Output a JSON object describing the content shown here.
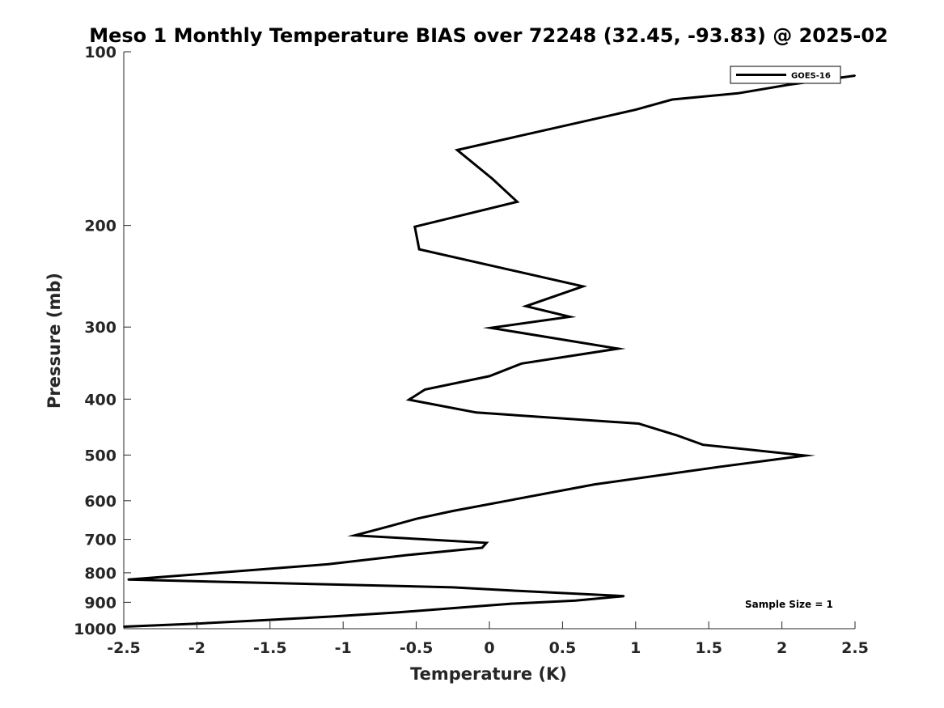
{
  "chart_data": {
    "type": "line",
    "title": "Meso 1 Monthly Temperature BIAS over 72248 (32.45, -93.83) @ 2025-02",
    "xlabel": "Temperature (K)",
    "ylabel": "Pressure (mb)",
    "xlim": [
      -2.5,
      2.5
    ],
    "ylim": [
      100,
      1000
    ],
    "yscale": "log",
    "y_reversed": true,
    "xticks": [
      -2.5,
      -2,
      -1.5,
      -1,
      -0.5,
      0,
      0.5,
      1,
      1.5,
      2,
      2.5
    ],
    "xtick_labels": [
      "-2.5",
      "-2",
      "-1.5",
      "-1",
      "-0.5",
      "0",
      "0.5",
      "1",
      "1.5",
      "2",
      "2.5"
    ],
    "yticks": [
      100,
      200,
      300,
      400,
      500,
      600,
      700,
      800,
      900,
      1000
    ],
    "ytick_labels": [
      "100",
      "200",
      "300",
      "400",
      "500",
      "600",
      "700",
      "800",
      "900",
      "1000"
    ],
    "grid": false,
    "legend_position": "top-right",
    "series": [
      {
        "name": "GOES-16",
        "color": "#000000",
        "points": [
          {
            "x": 2.5,
            "y": 110
          },
          {
            "x": 2.05,
            "y": 114
          },
          {
            "x": 1.7,
            "y": 118
          },
          {
            "x": 1.25,
            "y": 121
          },
          {
            "x": 1.0,
            "y": 126
          },
          {
            "x": -0.22,
            "y": 148
          },
          {
            "x": 0.02,
            "y": 166
          },
          {
            "x": 0.19,
            "y": 182
          },
          {
            "x": -0.51,
            "y": 201
          },
          {
            "x": -0.48,
            "y": 220
          },
          {
            "x": 0.64,
            "y": 255
          },
          {
            "x": 0.25,
            "y": 276
          },
          {
            "x": 0.55,
            "y": 288
          },
          {
            "x": 0.01,
            "y": 301
          },
          {
            "x": 0.88,
            "y": 327
          },
          {
            "x": 0.22,
            "y": 347
          },
          {
            "x": 0.0,
            "y": 365
          },
          {
            "x": -0.44,
            "y": 385
          },
          {
            "x": -0.55,
            "y": 401
          },
          {
            "x": -0.09,
            "y": 422
          },
          {
            "x": 1.02,
            "y": 441
          },
          {
            "x": 1.28,
            "y": 462
          },
          {
            "x": 1.46,
            "y": 480
          },
          {
            "x": 2.16,
            "y": 501
          },
          {
            "x": 1.6,
            "y": 523
          },
          {
            "x": 0.72,
            "y": 562
          },
          {
            "x": 0.11,
            "y": 601
          },
          {
            "x": -0.25,
            "y": 625
          },
          {
            "x": -0.5,
            "y": 645
          },
          {
            "x": -0.68,
            "y": 664
          },
          {
            "x": -0.92,
            "y": 689
          },
          {
            "x": -0.02,
            "y": 710
          },
          {
            "x": -0.05,
            "y": 724
          },
          {
            "x": -0.55,
            "y": 745
          },
          {
            "x": -1.1,
            "y": 773
          },
          {
            "x": -2.47,
            "y": 822
          },
          {
            "x": -0.25,
            "y": 848
          },
          {
            "x": 0.2,
            "y": 860
          },
          {
            "x": 0.92,
            "y": 878
          },
          {
            "x": 0.59,
            "y": 894
          },
          {
            "x": 0.15,
            "y": 905
          },
          {
            "x": -0.17,
            "y": 918
          },
          {
            "x": -0.63,
            "y": 937
          },
          {
            "x": -1.06,
            "y": 952
          },
          {
            "x": -1.52,
            "y": 966
          },
          {
            "x": -2.0,
            "y": 980
          },
          {
            "x": -2.5,
            "y": 992
          }
        ]
      }
    ],
    "annotations": [
      "Sample Size = 1"
    ]
  }
}
